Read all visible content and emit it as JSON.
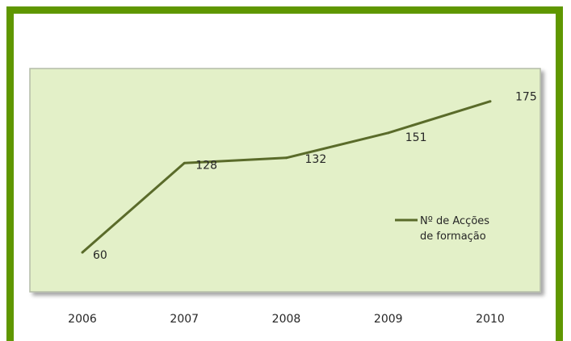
{
  "chart_data": {
    "type": "line",
    "title": "",
    "xlabel": "",
    "ylabel": "",
    "categories": [
      "2006",
      "2007",
      "2008",
      "2009",
      "2010"
    ],
    "series": [
      {
        "name": "Nº de Acções de formação",
        "values": [
          60,
          128,
          132,
          151,
          175
        ]
      }
    ],
    "ylim": [
      30,
      200
    ],
    "grid": false,
    "legend_position": "right",
    "colors": {
      "frame": "#5f9700",
      "plot_background": "#e3f0c8",
      "line": "#5a6b2a",
      "text": "#262626"
    }
  }
}
